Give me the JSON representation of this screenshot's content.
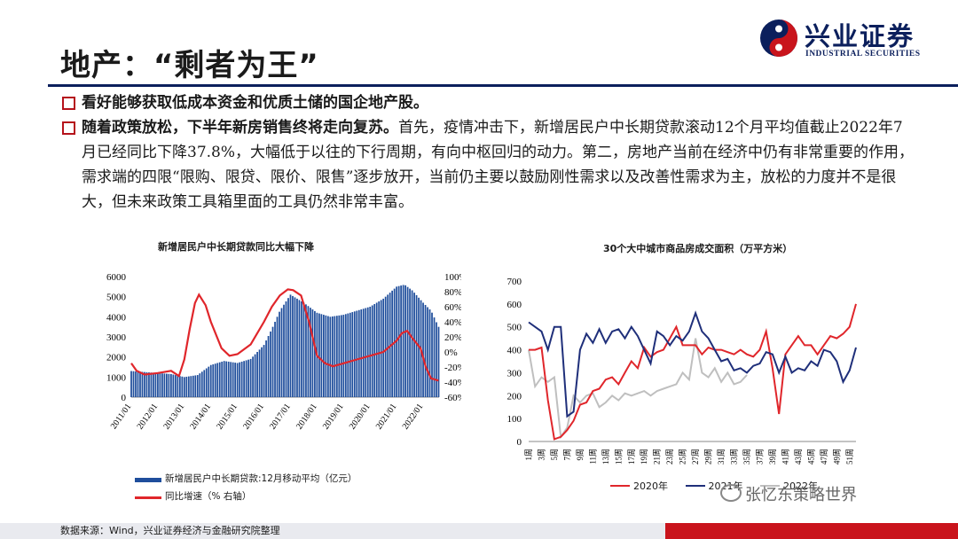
{
  "header": {
    "title": "地产：“剩者为王”",
    "logo_name": "兴业证券",
    "logo_en": "INDUSTRIAL SECURITIES"
  },
  "bullets": [
    {
      "bold": "看好能够获取低成本资金和优质土储的国企地产股。",
      "text": ""
    },
    {
      "bold": "随着政策放松，下半年新房销售终将走向复苏。",
      "text": "首先，疫情冲击下，新增居民户中长期贷款滚动12个月平均值截止2022年7月已经同比下降37.8%，大幅低于以往的下行周期，有向中枢回归的动力。第二，房地产当前在经济中仍有非常重要的作用，需求端的四限“限购、限贷、限价、限售”逐步放开，当前仍主要以鼓励刚性需求以及改善性需求为主，放松的力度并不是很大，但未来政策工具箱里面的工具仍然非常丰富。"
    }
  ],
  "left_chart": {
    "title": "新增居民户中长期贷款同比大幅下降",
    "legend": [
      "新增居民户中长期贷款:12月移动平均（亿元）",
      "同比增速（% 右轴）"
    ]
  },
  "right_chart": {
    "title": "30个大中城市商品房成交面积（万平方米）",
    "legend": [
      "2020年",
      "2021年",
      "2022年"
    ]
  },
  "chart_data": [
    {
      "type": "bar",
      "title": "新增居民户中长期贷款同比大幅下降",
      "x_tick_labels": [
        "2011/01",
        "2012/01",
        "2013/01",
        "2014/01",
        "2015/01",
        "2016/01",
        "2017/01",
        "2018/01",
        "2019/01",
        "2020/01",
        "2021/01",
        "2022/01"
      ],
      "ylim": [
        0,
        6000
      ],
      "y_ticks": [
        0,
        1000,
        2000,
        3000,
        4000,
        5000,
        6000
      ],
      "y2lim": [
        -60,
        100
      ],
      "y2_ticks": [
        "-60%",
        "-40%",
        "-20%",
        "0%",
        "20%",
        "40%",
        "60%",
        "80%",
        "100%"
      ],
      "colors": {
        "bars": "#1f4e9c",
        "line": "#e0262b"
      },
      "series": [
        {
          "name": "新增居民户中长期贷款:12月移动平均（亿元）",
          "axis": "left",
          "x": [
            2011.0,
            2011.5,
            2012.0,
            2012.5,
            2013.0,
            2013.5,
            2014.0,
            2014.5,
            2015.0,
            2015.5,
            2016.0,
            2016.3,
            2016.6,
            2017.0,
            2017.5,
            2018.0,
            2018.5,
            2019.0,
            2019.5,
            2020.0,
            2020.5,
            2021.0,
            2021.3,
            2021.6,
            2022.0,
            2022.3,
            2022.58
          ],
          "values": [
            1300,
            1250,
            1200,
            1150,
            1000,
            1100,
            1600,
            1800,
            1700,
            1900,
            2600,
            3400,
            4300,
            5100,
            4700,
            4200,
            4000,
            4100,
            4300,
            4500,
            4900,
            5500,
            5600,
            5300,
            4700,
            4300,
            3500
          ]
        },
        {
          "name": "同比增速（% 右轴）",
          "axis": "right",
          "x": [
            2011.0,
            2011.2,
            2011.5,
            2012.0,
            2012.5,
            2012.8,
            2013.0,
            2013.2,
            2013.4,
            2013.55,
            2013.8,
            2014.0,
            2014.4,
            2014.7,
            2015.0,
            2015.5,
            2016.0,
            2016.3,
            2016.6,
            2016.9,
            2017.1,
            2017.4,
            2017.7,
            2018.0,
            2018.3,
            2018.6,
            2019.0,
            2019.5,
            2020.0,
            2020.5,
            2021.0,
            2021.2,
            2021.4,
            2021.6,
            2021.9,
            2022.1,
            2022.3,
            2022.58
          ],
          "values": [
            -15,
            -25,
            -30,
            -28,
            -25,
            -32,
            -10,
            30,
            65,
            76,
            62,
            40,
            5,
            -5,
            -3,
            10,
            40,
            60,
            75,
            83,
            82,
            75,
            40,
            -5,
            -15,
            -19,
            -15,
            -10,
            -5,
            0,
            15,
            25,
            28,
            18,
            5,
            -20,
            -35,
            -38
          ]
        }
      ]
    },
    {
      "type": "line",
      "title": "30个大中城市商品房成交面积（万平方米）",
      "x_tick_labels": [
        "1周",
        "3周",
        "5周",
        "7周",
        "9周",
        "11周",
        "13周",
        "15周",
        "17周",
        "19周",
        "21周",
        "23周",
        "25周",
        "27周",
        "29周",
        "31周",
        "33周",
        "35周",
        "37周",
        "39周",
        "41周",
        "43周",
        "45周",
        "47周",
        "49周",
        "51周"
      ],
      "ylim": [
        0,
        700
      ],
      "y_ticks": [
        0,
        100,
        200,
        300,
        400,
        500,
        600,
        700
      ],
      "colors": {
        "2020年": "#e0262b",
        "2021年": "#1f2f7a",
        "2022年": "#bfbfbf"
      },
      "series": [
        {
          "name": "2020年",
          "x": [
            1,
            2,
            3,
            4,
            5,
            6,
            7,
            8,
            9,
            10,
            11,
            12,
            13,
            14,
            15,
            16,
            17,
            18,
            19,
            20,
            21,
            22,
            23,
            24,
            25,
            26,
            27,
            28,
            29,
            30,
            31,
            32,
            33,
            34,
            35,
            36,
            37,
            38,
            39,
            40,
            41,
            42,
            43,
            44,
            45,
            46,
            47,
            48,
            49,
            50,
            51,
            52
          ],
          "values": [
            400,
            400,
            410,
            180,
            10,
            20,
            50,
            90,
            160,
            170,
            220,
            230,
            270,
            280,
            250,
            300,
            350,
            320,
            410,
            370,
            390,
            400,
            450,
            500,
            420,
            420,
            420,
            380,
            410,
            400,
            400,
            390,
            380,
            400,
            380,
            370,
            400,
            480,
            320,
            120,
            380,
            420,
            460,
            420,
            420,
            380,
            420,
            460,
            450,
            470,
            500,
            600
          ]
        },
        {
          "name": "2021年",
          "x": [
            1,
            2,
            3,
            4,
            5,
            6,
            7,
            8,
            9,
            10,
            11,
            12,
            13,
            14,
            15,
            16,
            17,
            18,
            19,
            20,
            21,
            22,
            23,
            24,
            25,
            26,
            27,
            28,
            29,
            30,
            31,
            32,
            33,
            34,
            35,
            36,
            37,
            38,
            39,
            40,
            41,
            42,
            43,
            44,
            45,
            46,
            47,
            48,
            49,
            50,
            51,
            52
          ],
          "values": [
            520,
            500,
            480,
            400,
            500,
            500,
            110,
            130,
            400,
            470,
            430,
            490,
            430,
            480,
            490,
            450,
            500,
            460,
            400,
            340,
            480,
            460,
            420,
            460,
            440,
            480,
            560,
            480,
            450,
            400,
            350,
            360,
            310,
            320,
            300,
            330,
            340,
            390,
            380,
            300,
            370,
            300,
            320,
            310,
            350,
            330,
            400,
            390,
            350,
            260,
            310,
            410
          ]
        },
        {
          "name": "2022年",
          "x": [
            1,
            2,
            3,
            4,
            5,
            6,
            7,
            8,
            9,
            10,
            11,
            12,
            13,
            14,
            15,
            16,
            17,
            18,
            19,
            20,
            21,
            22,
            23,
            24,
            25,
            26,
            27,
            28,
            29,
            30,
            31,
            32,
            33,
            34,
            35
          ],
          "values": [
            400,
            240,
            280,
            260,
            280,
            20,
            60,
            200,
            170,
            200,
            210,
            150,
            170,
            200,
            180,
            210,
            200,
            210,
            220,
            200,
            220,
            230,
            240,
            250,
            300,
            270,
            450,
            300,
            280,
            320,
            260,
            300,
            250,
            260,
            290
          ]
        }
      ]
    }
  ],
  "footer": {
    "source": "数据来源：Wind，兴业证券经济与金融研究院整理",
    "watermark": "张忆东策略世界"
  }
}
